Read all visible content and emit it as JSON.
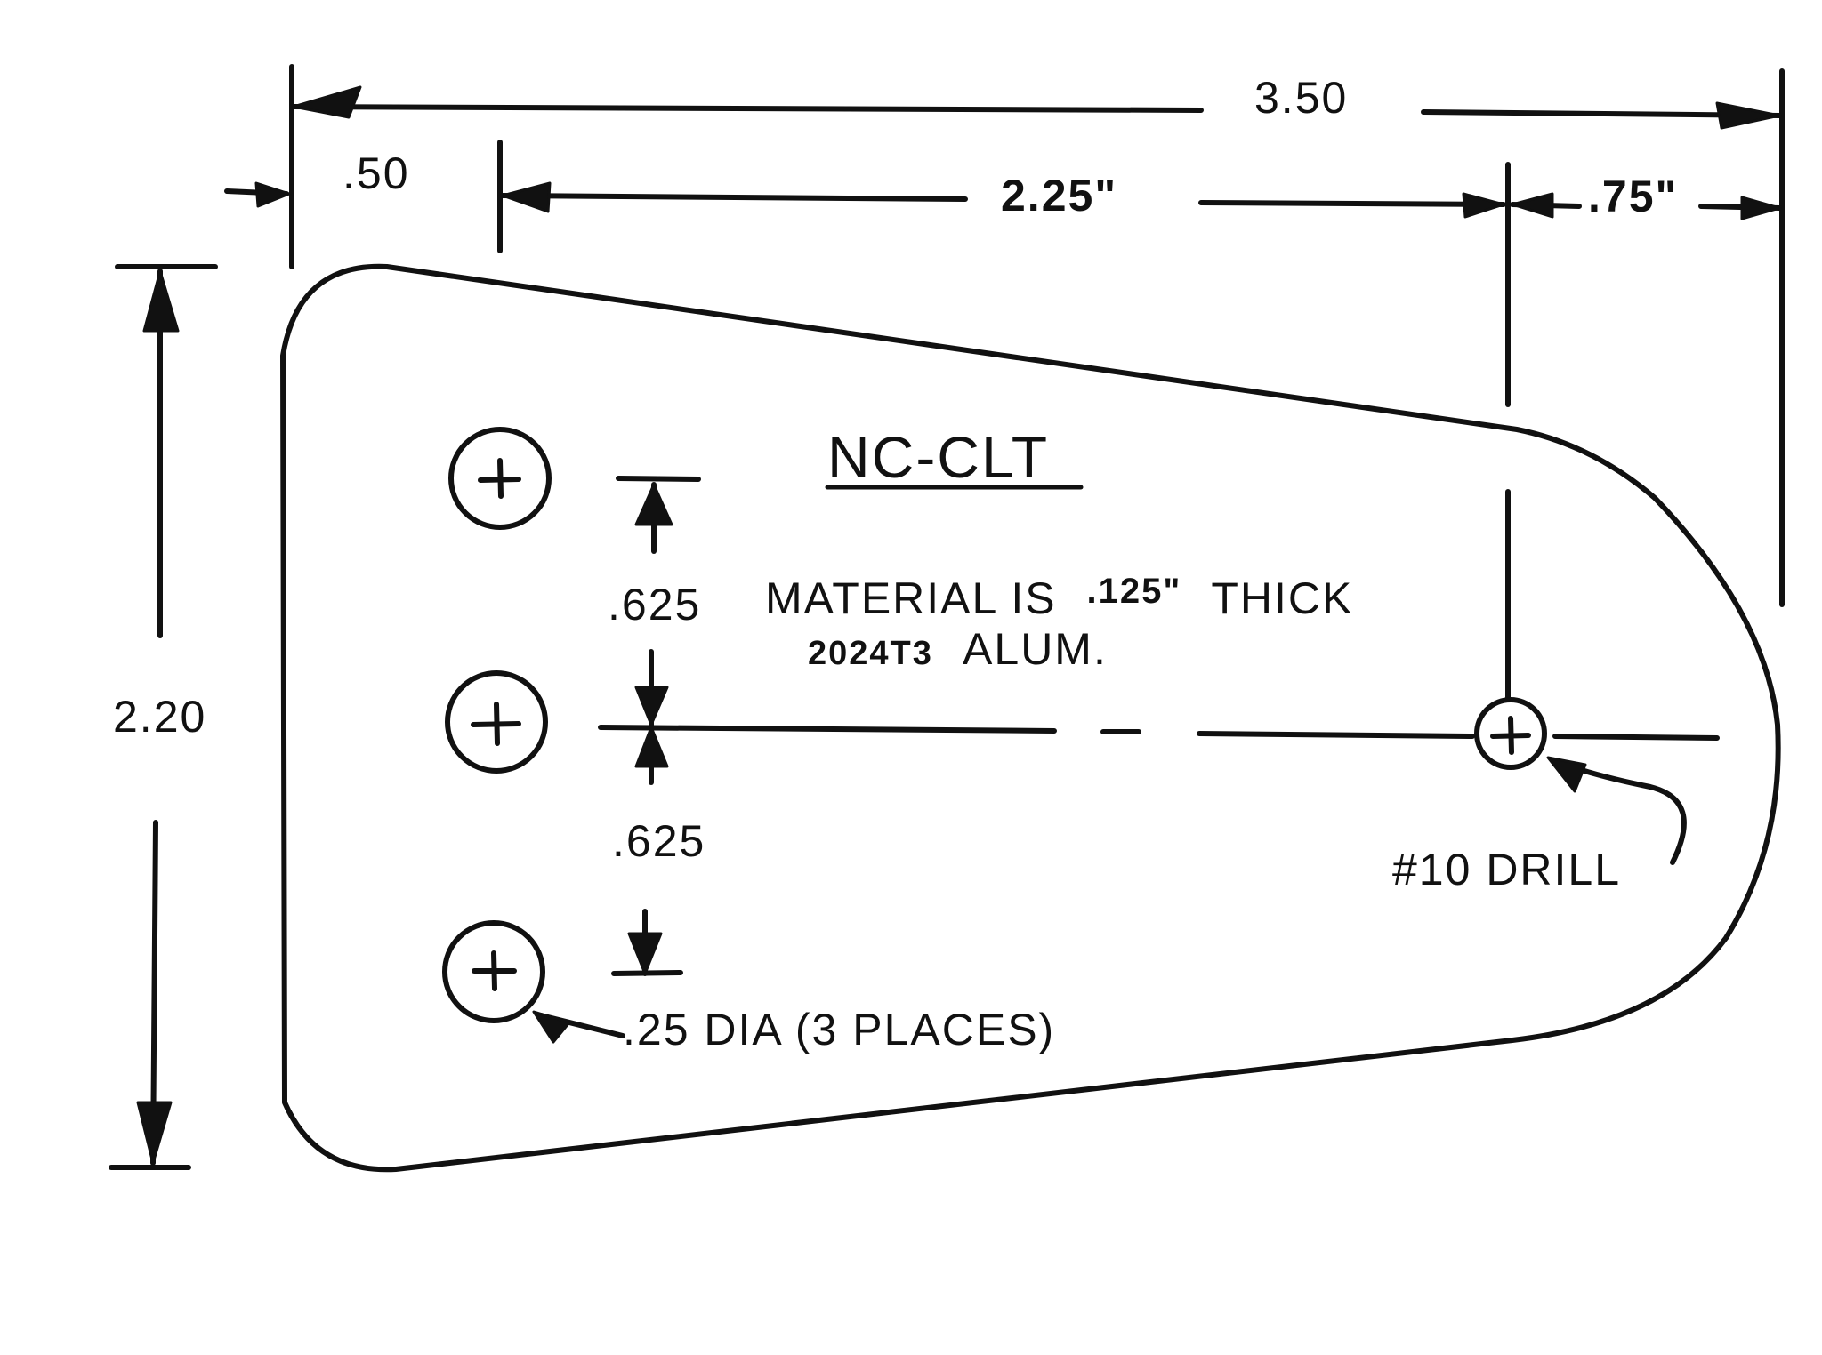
{
  "part_name": "NC-CLT",
  "dimensions": {
    "overall_width": "3.50",
    "left_offset": ".50",
    "hole_to_drill": "2.25\"",
    "drill_to_edge": ".75\"",
    "overall_height": "2.20",
    "hole_spacing_upper": ".625",
    "hole_spacing_lower": ".625"
  },
  "notes": {
    "material_prefix": "MATERIAL IS",
    "thickness": ".125\"",
    "material_suffix": "THICK",
    "alloy": "2024T3",
    "alloy_suffix": "ALUM."
  },
  "callouts": {
    "small_holes": ".25 DIA (3 PLACES)",
    "drill_hole": "#10 DRILL"
  }
}
